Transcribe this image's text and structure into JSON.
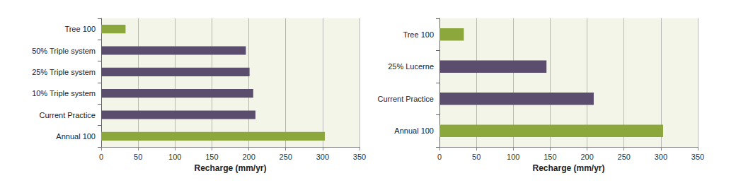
{
  "chart_data": [
    {
      "type": "bar",
      "orientation": "horizontal",
      "grid": true,
      "xlabel": "Recharge (mm/yr)",
      "categories": [
        "Tree 100",
        "50% Triple system",
        "25% Triple system",
        "10% Triple system",
        "Current Practice",
        "Annual 100"
      ],
      "values": [
        33,
        196,
        201,
        206,
        209,
        303
      ],
      "colors": [
        "#8ca83c",
        "#5b4d6d",
        "#5b4d6d",
        "#5b4d6d",
        "#5b4d6d",
        "#8ca83c"
      ],
      "xlim": [
        0,
        350
      ],
      "xticks": [
        0,
        50,
        100,
        150,
        200,
        250,
        300,
        350
      ]
    },
    {
      "type": "bar",
      "orientation": "horizontal",
      "grid": true,
      "xlabel": "Recharge (mm/yr)",
      "categories": [
        "Tree 100",
        "25% Lucerne",
        "Current Practice",
        "Annual 100"
      ],
      "values": [
        33,
        145,
        209,
        303
      ],
      "colors": [
        "#8ca83c",
        "#5b4d6d",
        "#5b4d6d",
        "#8ca83c"
      ],
      "xlim": [
        0,
        350
      ],
      "xticks": [
        0,
        50,
        100,
        150,
        200,
        250,
        300,
        350
      ]
    }
  ]
}
